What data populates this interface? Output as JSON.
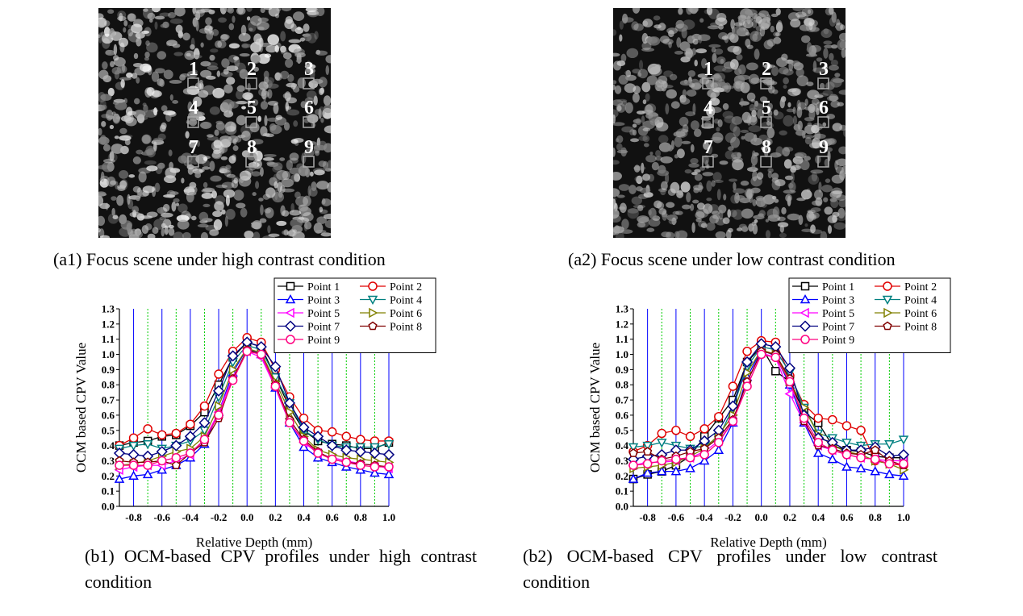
{
  "images": [
    {
      "caption": "(a1) Focus scene under high contrast condition",
      "labels": [
        "1",
        "2",
        "3",
        "4",
        "5",
        "6",
        "7",
        "8",
        "9"
      ]
    },
    {
      "caption": "(a2) Focus scene under low contrast condition",
      "labels": [
        "1",
        "2",
        "3",
        "4",
        "5",
        "6",
        "7",
        "8",
        "9"
      ]
    }
  ],
  "chart_data": [
    {
      "type": "line",
      "caption": "(b1) OCM-based CPV profiles under high contrast condition",
      "xlabel": "Relative Depth (mm)",
      "ylabel": "OCM based CPV Value",
      "x": [
        -0.9,
        -0.8,
        -0.7,
        -0.6,
        -0.5,
        -0.4,
        -0.3,
        -0.2,
        -0.1,
        0,
        0.1,
        0.2,
        0.3,
        0.4,
        0.5,
        0.6,
        0.7,
        0.8,
        0.9,
        1.0
      ],
      "xlim": [
        -0.9,
        1.0
      ],
      "ylim": [
        0,
        1.3
      ],
      "xticks": [
        -0.8,
        -0.6,
        -0.4,
        -0.2,
        {
          "value": 0,
          "label": "0.0"
        },
        0.2,
        0.4,
        0.6,
        0.8,
        {
          "value": 1,
          "label": "1.0"
        }
      ],
      "minor_xticks": [
        -0.9,
        -0.7,
        -0.5,
        -0.3,
        -0.1,
        0.1,
        0.3,
        0.5,
        0.7,
        0.9
      ],
      "yticks": [
        {
          "value": 0,
          "label": "0.0"
        },
        0.1,
        0.2,
        0.3,
        0.4,
        0.5,
        0.6,
        0.7,
        0.8,
        0.9,
        {
          "value": 1,
          "label": "1.0"
        },
        1.1,
        1.2,
        1.3
      ],
      "grid_color": "#0000ff",
      "minor_grid_color": "#00cc00",
      "series": [
        {
          "name": "Point 1",
          "color": "#000000",
          "marker": "square",
          "values": [
            0.4,
            0.42,
            0.43,
            0.46,
            0.47,
            0.53,
            0.62,
            0.8,
            0.98,
            1.08,
            1.05,
            0.85,
            0.65,
            0.5,
            0.43,
            0.41,
            0.4,
            0.38,
            0.38,
            0.42
          ]
        },
        {
          "name": "Point 2",
          "color": "#e00000",
          "marker": "circle",
          "values": [
            0.4,
            0.45,
            0.51,
            0.47,
            0.48,
            0.54,
            0.66,
            0.87,
            1.02,
            1.11,
            1.08,
            0.9,
            0.72,
            0.58,
            0.5,
            0.49,
            0.46,
            0.44,
            0.43,
            0.43
          ]
        },
        {
          "name": "Point 3",
          "color": "#0000ff",
          "marker": "triangle-up",
          "values": [
            0.18,
            0.2,
            0.21,
            0.24,
            0.27,
            0.32,
            0.41,
            0.62,
            0.88,
            1.04,
            1.0,
            0.78,
            0.55,
            0.39,
            0.32,
            0.29,
            0.26,
            0.24,
            0.22,
            0.21
          ]
        },
        {
          "name": "Point 4",
          "color": "#008080",
          "marker": "triangle-down",
          "values": [
            0.38,
            0.4,
            0.41,
            0.38,
            0.4,
            0.43,
            0.5,
            0.72,
            0.95,
            1.06,
            1.03,
            0.85,
            0.68,
            0.5,
            0.44,
            0.4,
            0.39,
            0.39,
            0.39,
            0.41
          ]
        },
        {
          "name": "Point 5",
          "color": "#ff00ff",
          "marker": "triangle-left",
          "values": [
            0.24,
            0.26,
            0.27,
            0.27,
            0.3,
            0.34,
            0.44,
            0.62,
            0.85,
            1.02,
            0.98,
            0.78,
            0.55,
            0.42,
            0.35,
            0.32,
            0.3,
            0.28,
            0.27,
            0.25
          ]
        },
        {
          "name": "Point 6",
          "color": "#808000",
          "marker": "triangle-right",
          "values": [
            0.27,
            0.28,
            0.3,
            0.33,
            0.36,
            0.38,
            0.46,
            0.66,
            0.9,
            1.04,
            1.01,
            0.82,
            0.62,
            0.46,
            0.37,
            0.34,
            0.32,
            0.31,
            0.3,
            0.29
          ]
        },
        {
          "name": "Point 7",
          "color": "#000080",
          "marker": "diamond",
          "values": [
            0.35,
            0.34,
            0.33,
            0.36,
            0.4,
            0.46,
            0.55,
            0.76,
            0.99,
            1.08,
            1.05,
            0.92,
            0.68,
            0.52,
            0.46,
            0.4,
            0.37,
            0.36,
            0.35,
            0.34
          ]
        },
        {
          "name": "Point 8",
          "color": "#800000",
          "marker": "pentagon",
          "values": [
            0.3,
            0.29,
            0.29,
            0.3,
            0.27,
            0.35,
            0.42,
            0.58,
            0.84,
            1.03,
            1.0,
            0.8,
            0.57,
            0.44,
            0.36,
            0.31,
            0.29,
            0.28,
            0.27,
            0.26
          ]
        },
        {
          "name": "Point 9",
          "color": "#ff0080",
          "marker": "circle",
          "values": [
            0.27,
            0.27,
            0.27,
            0.3,
            0.32,
            0.35,
            0.44,
            0.6,
            0.83,
            1.02,
            1.0,
            0.79,
            0.55,
            0.43,
            0.35,
            0.31,
            0.29,
            0.27,
            0.26,
            0.26
          ]
        }
      ]
    },
    {
      "type": "line",
      "caption": "(b2) OCM-based CPV profiles under low contrast condition",
      "xlabel": "Relative Depth (mm)",
      "ylabel": "OCM based CPV Value",
      "x": [
        -0.9,
        -0.8,
        -0.7,
        -0.6,
        -0.5,
        -0.4,
        -0.3,
        -0.2,
        -0.1,
        0,
        0.1,
        0.2,
        0.3,
        0.4,
        0.5,
        0.6,
        0.7,
        0.8,
        0.9,
        1.0
      ],
      "xlim": [
        -0.9,
        1.0
      ],
      "ylim": [
        0,
        1.3
      ],
      "xticks": [
        -0.8,
        -0.6,
        -0.4,
        -0.2,
        {
          "value": 0,
          "label": "0.0"
        },
        0.2,
        0.4,
        0.6,
        0.8,
        {
          "value": 1,
          "label": "1.0"
        }
      ],
      "minor_xticks": [
        -0.9,
        -0.7,
        -0.5,
        -0.3,
        -0.1,
        0.1,
        0.3,
        0.5,
        0.7,
        0.9
      ],
      "yticks": [
        {
          "value": 0,
          "label": "0.0"
        },
        0.1,
        0.2,
        0.3,
        0.4,
        0.5,
        0.6,
        0.7,
        0.8,
        0.9,
        {
          "value": 1,
          "label": "1.0"
        },
        1.1,
        1.2,
        1.3
      ],
      "grid_color": "#0000ff",
      "minor_grid_color": "#00cc00",
      "series": [
        {
          "name": "Point 1",
          "color": "#000000",
          "marker": "square",
          "values": [
            0.18,
            0.21,
            0.23,
            0.27,
            0.33,
            0.46,
            0.58,
            0.7,
            0.95,
            1.05,
            0.89,
            0.82,
            0.62,
            0.55,
            0.4,
            0.37,
            0.36,
            0.33,
            0.32,
            0.32
          ]
        },
        {
          "name": "Point 2",
          "color": "#e00000",
          "marker": "circle",
          "values": [
            0.36,
            0.4,
            0.48,
            0.5,
            0.46,
            0.51,
            0.59,
            0.79,
            1.02,
            1.09,
            1.08,
            0.86,
            0.67,
            0.58,
            0.57,
            0.53,
            0.5,
            0.3,
            0.28,
            0.27
          ]
        },
        {
          "name": "Point 3",
          "color": "#0000ff",
          "marker": "triangle-up",
          "values": [
            0.18,
            0.22,
            0.23,
            0.23,
            0.25,
            0.3,
            0.37,
            0.55,
            0.85,
            1.03,
            0.99,
            0.8,
            0.55,
            0.35,
            0.31,
            0.26,
            0.25,
            0.23,
            0.21,
            0.2
          ]
        },
        {
          "name": "Point 4",
          "color": "#008080",
          "marker": "triangle-down",
          "values": [
            0.39,
            0.4,
            0.42,
            0.4,
            0.38,
            0.4,
            0.45,
            0.65,
            0.92,
            1.05,
            1.03,
            0.88,
            0.65,
            0.48,
            0.45,
            0.42,
            0.4,
            0.41,
            0.41,
            0.44
          ]
        },
        {
          "name": "Point 5",
          "color": "#ff00ff",
          "marker": "triangle-left",
          "values": [
            0.27,
            0.29,
            0.29,
            0.3,
            0.32,
            0.36,
            0.43,
            0.56,
            0.82,
            1.01,
            0.98,
            0.74,
            0.55,
            0.4,
            0.37,
            0.34,
            0.32,
            0.31,
            0.3,
            0.3
          ]
        },
        {
          "name": "Point 6",
          "color": "#808000",
          "marker": "triangle-right",
          "values": [
            0.25,
            0.26,
            0.27,
            0.29,
            0.33,
            0.38,
            0.47,
            0.6,
            0.88,
            1.03,
            1.0,
            0.82,
            0.65,
            0.47,
            0.4,
            0.36,
            0.34,
            0.3,
            0.28,
            0.24
          ]
        },
        {
          "name": "Point 7",
          "color": "#000080",
          "marker": "diamond",
          "values": [
            0.31,
            0.33,
            0.34,
            0.37,
            0.37,
            0.43,
            0.5,
            0.66,
            0.95,
            1.07,
            1.05,
            0.91,
            0.6,
            0.45,
            0.42,
            0.37,
            0.37,
            0.39,
            0.33,
            0.34
          ]
        },
        {
          "name": "Point 8",
          "color": "#800000",
          "marker": "pentagon",
          "values": [
            0.35,
            0.36,
            0.31,
            0.33,
            0.36,
            0.38,
            0.45,
            0.57,
            0.82,
            1.02,
            1.0,
            0.84,
            0.56,
            0.4,
            0.38,
            0.35,
            0.34,
            0.37,
            0.3,
            0.27
          ]
        },
        {
          "name": "Point 9",
          "color": "#ff0080",
          "marker": "circle",
          "values": [
            0.27,
            0.28,
            0.3,
            0.31,
            0.32,
            0.34,
            0.42,
            0.56,
            0.79,
            1.0,
            0.98,
            0.82,
            0.58,
            0.42,
            0.37,
            0.34,
            0.32,
            0.31,
            0.28,
            0.28
          ]
        }
      ]
    }
  ]
}
